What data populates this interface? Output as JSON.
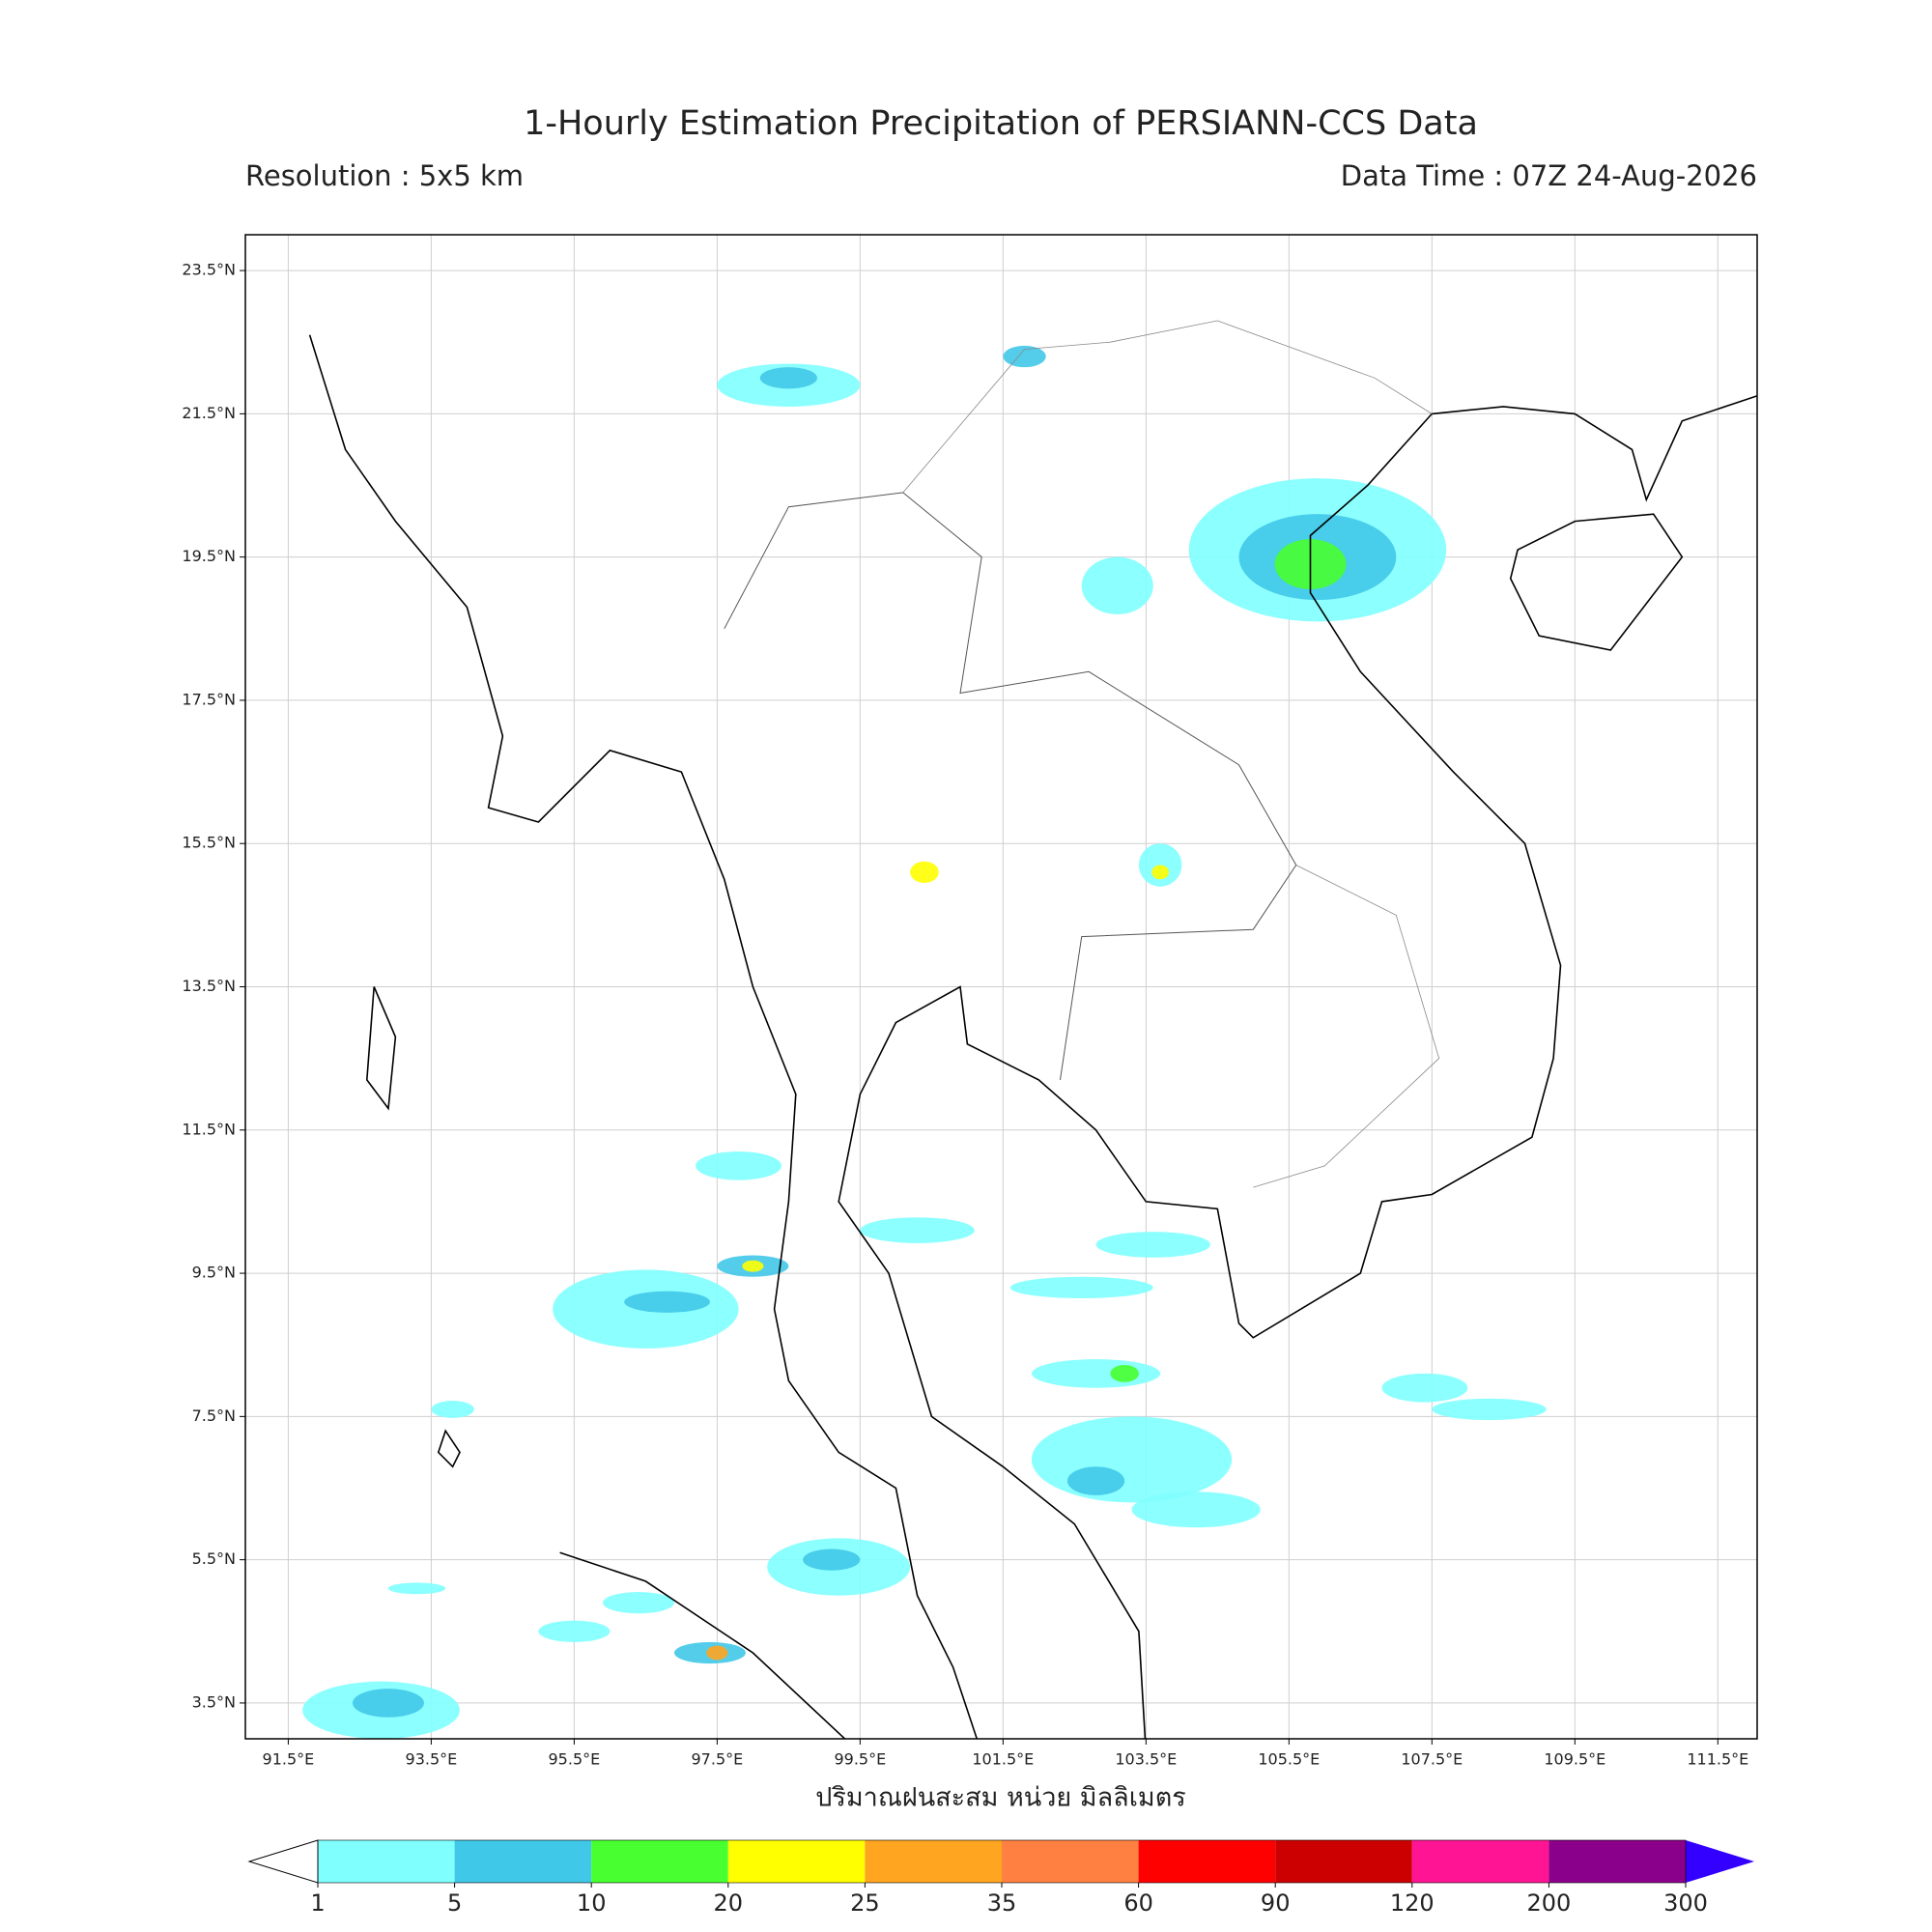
{
  "chart_data": {
    "type": "map",
    "title": "1-Hourly Estimation Precipitation of PERSIANN-CCS Data",
    "subtitle": "Resolution : 5x5 km",
    "data_time": "Data Time : 07Z 24-Aug-2026",
    "xlabel": "ปริมาณฝนสะสม หน่วย มิลลิเมตร",
    "xlim": [
      90.9,
      112.05
    ],
    "ylim": [
      3.0,
      24.0
    ],
    "xticks": [
      {
        "value": 91.5,
        "label": "91.5°E"
      },
      {
        "value": 93.5,
        "label": "93.5°E"
      },
      {
        "value": 95.5,
        "label": "95.5°E"
      },
      {
        "value": 97.5,
        "label": "97.5°E"
      },
      {
        "value": 99.5,
        "label": "99.5°E"
      },
      {
        "value": 101.5,
        "label": "101.5°E"
      },
      {
        "value": 103.5,
        "label": "103.5°E"
      },
      {
        "value": 105.5,
        "label": "105.5°E"
      },
      {
        "value": 107.5,
        "label": "107.5°E"
      },
      {
        "value": 109.5,
        "label": "109.5°E"
      },
      {
        "value": 111.5,
        "label": "111.5°E"
      }
    ],
    "yticks": [
      {
        "value": 3.5,
        "label": "3.5°N"
      },
      {
        "value": 5.5,
        "label": "5.5°N"
      },
      {
        "value": 7.5,
        "label": "7.5°N"
      },
      {
        "value": 9.5,
        "label": "9.5°N"
      },
      {
        "value": 11.5,
        "label": "11.5°N"
      },
      {
        "value": 13.5,
        "label": "13.5°N"
      },
      {
        "value": 15.5,
        "label": "15.5°N"
      },
      {
        "value": 17.5,
        "label": "17.5°N"
      },
      {
        "value": 19.5,
        "label": "19.5°N"
      },
      {
        "value": 21.5,
        "label": "21.5°N"
      },
      {
        "value": 23.5,
        "label": "23.5°N"
      }
    ],
    "grid": true,
    "colorbar": {
      "bounds": [
        1,
        5,
        10,
        20,
        25,
        35,
        60,
        90,
        120,
        200,
        300
      ],
      "colors": [
        "#80ffff",
        "#40c8e8",
        "#48ff30",
        "#ffff00",
        "#ffa520",
        "#ff8040",
        "#ff0000",
        "#cc0000",
        "#ff1493",
        "#8b008b"
      ],
      "under_color": "#ffffff",
      "over_color": "#3300ff"
    }
  }
}
